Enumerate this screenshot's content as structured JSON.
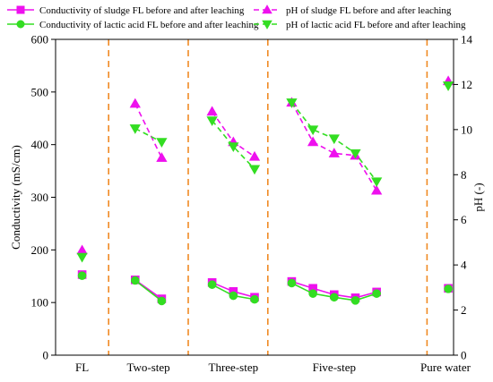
{
  "chart_data": {
    "type": "line",
    "left_axis": {
      "label": "Conductivity (mS/cm)",
      "ylim": [
        0,
        600
      ],
      "ticks": [
        0,
        100,
        200,
        300,
        400,
        500,
        600
      ]
    },
    "right_axis": {
      "label": "pH (-)",
      "ylim": [
        0,
        14
      ],
      "ticks": [
        0,
        2,
        4,
        6,
        8,
        10,
        12,
        14
      ]
    },
    "x_categories": [
      "FL",
      "Two-step",
      "Three-step",
      "Five-step",
      "Pure water"
    ],
    "x_range": [
      0,
      15
    ],
    "separators_x": [
      2,
      5,
      8,
      14
    ],
    "legend_position": "top",
    "grid": false,
    "series": [
      {
        "name": "Conductivity of sludge FL before and after leaching",
        "axis": "left",
        "color": "#ee10ee",
        "marker": "square",
        "dashed": false,
        "groups": [
          {
            "x": [
              1
            ],
            "y": [
              153
            ]
          },
          {
            "x": [
              3,
              4
            ],
            "y": [
              143,
              107
            ]
          },
          {
            "x": [
              5.9,
              6.7,
              7.5
            ],
            "y": [
              138,
              121,
              110
            ]
          },
          {
            "x": [
              8.9,
              9.7,
              10.5,
              11.3,
              12.1
            ],
            "y": [
              140,
              127,
              115,
              109,
              120
            ]
          },
          {
            "x": [
              14.8
            ],
            "y": [
              127
            ]
          }
        ]
      },
      {
        "name": "Conductivity of lactic acid FL before and after leaching",
        "axis": "left",
        "color": "#33dd22",
        "marker": "circle",
        "dashed": false,
        "groups": [
          {
            "x": [
              1
            ],
            "y": [
              151
            ]
          },
          {
            "x": [
              3,
              4
            ],
            "y": [
              142,
              103
            ]
          },
          {
            "x": [
              5.9,
              6.7,
              7.5
            ],
            "y": [
              134,
              113,
              106
            ]
          },
          {
            "x": [
              8.9,
              9.7,
              10.5,
              11.3,
              12.1
            ],
            "y": [
              137,
              117,
              110,
              104,
              117
            ]
          },
          {
            "x": [
              14.8
            ],
            "y": [
              126
            ]
          }
        ]
      },
      {
        "name": "pH of sludge FL before and after leaching",
        "axis": "right",
        "color": "#ee10ee",
        "marker": "triangle-up",
        "dashed": true,
        "groups": [
          {
            "x": [
              1
            ],
            "y": [
              4.65
            ]
          },
          {
            "x": [
              3,
              4
            ],
            "y": [
              11.15,
              8.75
            ]
          },
          {
            "x": [
              5.9,
              6.7,
              7.5
            ],
            "y": [
              10.8,
              9.45,
              8.8
            ]
          },
          {
            "x": [
              8.9,
              9.7,
              10.5,
              11.3,
              12.1
            ],
            "y": [
              11.2,
              9.45,
              8.95,
              8.85,
              7.3
            ]
          },
          {
            "x": [
              14.8
            ],
            "y": [
              12.15
            ]
          }
        ]
      },
      {
        "name": "pH of lactic acid FL before and after leaching",
        "axis": "right",
        "color": "#33dd22",
        "marker": "triangle-down",
        "dashed": true,
        "groups": [
          {
            "x": [
              1
            ],
            "y": [
              4.35
            ]
          },
          {
            "x": [
              3,
              4
            ],
            "y": [
              10.05,
              9.45
            ]
          },
          {
            "x": [
              5.9,
              6.7,
              7.5
            ],
            "y": [
              10.4,
              9.25,
              8.25
            ]
          },
          {
            "x": [
              8.9,
              9.7,
              10.5,
              11.3,
              12.1
            ],
            "y": [
              11.2,
              10.0,
              9.6,
              8.95,
              7.7
            ]
          },
          {
            "x": [
              14.8
            ],
            "y": [
              11.95
            ]
          }
        ]
      }
    ]
  }
}
